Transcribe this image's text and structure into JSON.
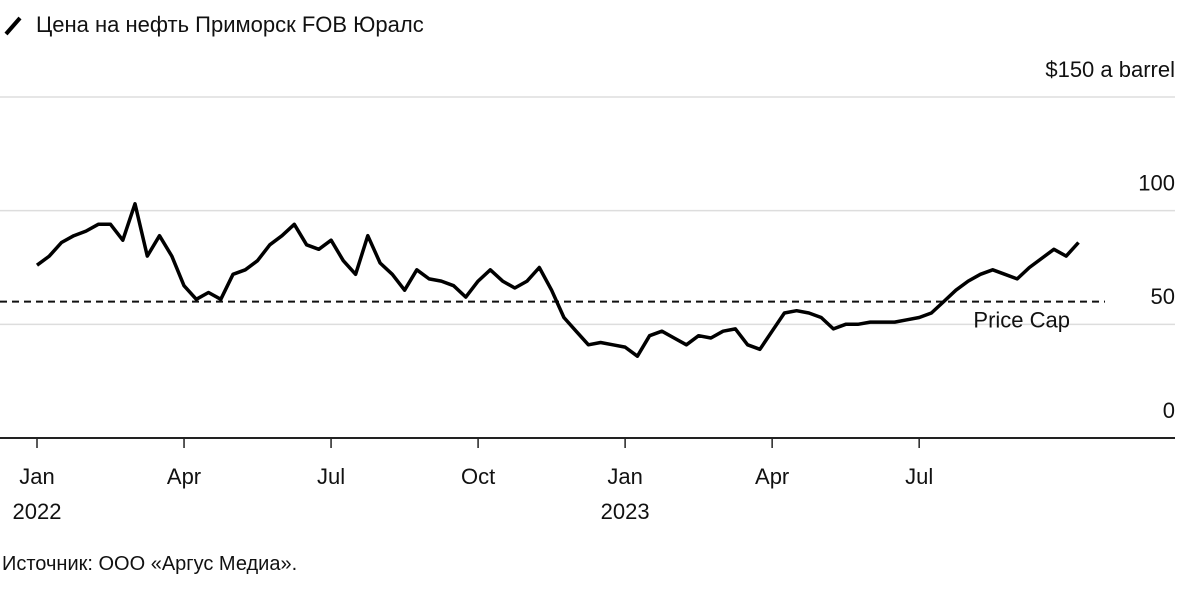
{
  "chart_data": {
    "type": "line",
    "series": [
      {
        "name": "Цена на нефть Приморск FOB Юралс",
        "color": "#000000",
        "values": [
          76,
          80,
          86,
          89,
          91,
          94,
          94,
          87,
          103,
          80,
          89,
          80,
          67,
          61,
          64,
          61,
          72,
          74,
          78,
          85,
          89,
          94,
          85,
          83,
          87,
          78,
          72,
          89,
          77,
          72,
          65,
          74,
          70,
          69,
          67,
          62,
          69,
          74,
          69,
          66,
          69,
          75,
          65,
          53,
          47,
          41,
          42,
          41,
          40,
          36,
          45,
          47,
          44,
          41,
          45,
          44,
          47,
          48,
          41,
          39,
          47,
          55,
          56,
          55,
          53,
          48,
          50,
          50,
          51,
          51,
          51,
          52,
          53,
          55,
          60,
          65,
          69,
          72,
          74,
          72,
          70,
          75,
          79,
          83,
          80,
          86
        ]
      }
    ],
    "x": [
      0,
      0.25,
      0.5,
      0.75,
      1,
      1.25,
      1.5,
      1.75,
      2,
      2.25,
      2.5,
      2.75,
      3,
      3.25,
      3.5,
      3.75,
      4,
      4.25,
      4.5,
      4.75,
      5,
      5.25,
      5.5,
      5.75,
      6,
      6.25,
      6.5,
      6.75,
      7,
      7.25,
      7.5,
      7.75,
      8,
      8.25,
      8.5,
      8.75,
      9,
      9.25,
      9.5,
      9.75,
      10,
      10.25,
      10.5,
      10.75,
      11,
      11.25,
      11.5,
      11.75,
      12,
      12.25,
      12.5,
      12.75,
      13,
      13.25,
      13.5,
      13.75,
      14,
      14.25,
      14.5,
      14.75,
      15,
      15.25,
      15.5,
      15.75,
      16,
      16.25,
      16.5,
      16.75,
      17,
      17.25,
      17.5,
      17.75,
      18,
      18.25,
      18.5,
      18.75,
      19,
      19.25,
      19.5,
      19.75,
      20,
      20.25,
      20.5,
      20.75,
      21,
      21.25
    ],
    "xlim": [
      -0.755,
      23.22
    ],
    "xticks": [
      {
        "value": 0,
        "label": "Jan"
      },
      {
        "value": 3,
        "label": "Apr"
      },
      {
        "value": 6,
        "label": "Jul"
      },
      {
        "value": 9,
        "label": "Oct"
      },
      {
        "value": 12,
        "label": "Jan"
      },
      {
        "value": 15,
        "label": "Apr"
      },
      {
        "value": 18,
        "label": "Jul"
      }
    ],
    "xtick_years": [
      {
        "value": 0,
        "label": "2022"
      },
      {
        "value": 12,
        "label": "2023"
      }
    ],
    "ylim": [
      0,
      150
    ],
    "yticks": [
      0,
      50,
      100,
      {
        "value": 150,
        "label": "$150 a barrel"
      }
    ],
    "grid": true,
    "reference_line": {
      "value": 60,
      "label": "Price Cap"
    },
    "source": "Источник: ООО «Аргус Медиа»."
  }
}
